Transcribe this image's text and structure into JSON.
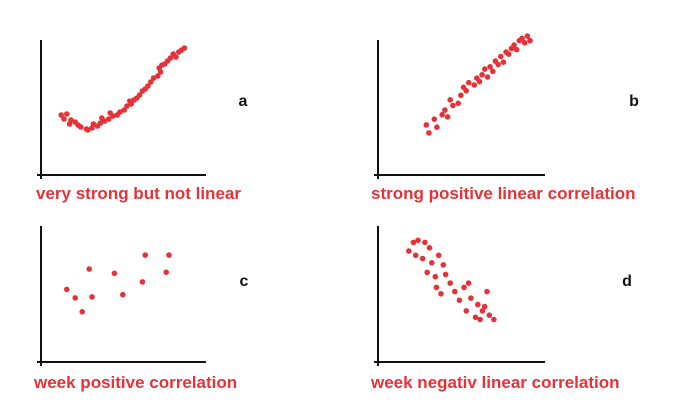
{
  "colors": {
    "point": "#e53238",
    "axis": "#111111",
    "caption": "#e53238"
  },
  "chart_data": [
    {
      "type": "scatter",
      "letter": "a",
      "caption": "very strong but not linear",
      "xlim": [
        0,
        100
      ],
      "ylim": [
        0,
        100
      ],
      "points": [
        [
          8,
          33
        ],
        [
          12,
          34
        ],
        [
          10,
          29
        ],
        [
          15,
          28
        ],
        [
          14,
          24
        ],
        [
          18,
          26
        ],
        [
          22,
          21
        ],
        [
          20,
          23
        ],
        [
          26,
          19
        ],
        [
          30,
          20
        ],
        [
          31,
          24
        ],
        [
          34,
          22
        ],
        [
          36,
          25
        ],
        [
          39,
          27
        ],
        [
          37,
          30
        ],
        [
          42,
          29
        ],
        [
          45,
          32
        ],
        [
          43,
          35
        ],
        [
          48,
          33
        ],
        [
          50,
          36
        ],
        [
          53,
          38
        ],
        [
          55,
          42
        ],
        [
          58,
          44
        ],
        [
          57,
          47
        ],
        [
          62,
          50
        ],
        [
          64,
          53
        ],
        [
          66,
          57
        ],
        [
          70,
          62
        ],
        [
          72,
          66
        ],
        [
          74,
          70
        ],
        [
          77,
          72
        ],
        [
          79,
          76
        ],
        [
          78,
          80
        ],
        [
          82,
          84
        ],
        [
          84,
          87
        ],
        [
          86,
          90
        ],
        [
          88,
          94
        ],
        [
          90,
          91
        ],
        [
          92,
          96
        ],
        [
          94,
          98
        ],
        [
          96,
          100
        ],
        [
          60,
          48
        ],
        [
          68,
          59
        ],
        [
          80,
          83
        ],
        [
          27,
          18
        ]
      ]
    },
    {
      "type": "scatter",
      "letter": "b",
      "caption": "strong positive linear correlation",
      "xlim": [
        0,
        100
      ],
      "ylim": [
        0,
        100
      ],
      "points": [
        [
          16,
          22
        ],
        [
          18,
          15
        ],
        [
          22,
          27
        ],
        [
          24,
          20
        ],
        [
          28,
          31
        ],
        [
          30,
          35
        ],
        [
          32,
          29
        ],
        [
          36,
          39
        ],
        [
          34,
          44
        ],
        [
          40,
          41
        ],
        [
          42,
          48
        ],
        [
          46,
          52
        ],
        [
          44,
          55
        ],
        [
          48,
          59
        ],
        [
          52,
          57
        ],
        [
          54,
          63
        ],
        [
          56,
          60
        ],
        [
          58,
          66
        ],
        [
          62,
          64
        ],
        [
          60,
          71
        ],
        [
          64,
          73
        ],
        [
          66,
          69
        ],
        [
          68,
          78
        ],
        [
          70,
          75
        ],
        [
          72,
          82
        ],
        [
          74,
          77
        ],
        [
          76,
          86
        ],
        [
          78,
          84
        ],
        [
          80,
          89
        ],
        [
          82,
          92
        ],
        [
          84,
          88
        ],
        [
          86,
          96
        ],
        [
          88,
          98
        ],
        [
          90,
          94
        ],
        [
          92,
          100
        ],
        [
          94,
          96
        ]
      ]
    },
    {
      "type": "scatter",
      "letter": "c",
      "caption": "week positive correlation",
      "xlim": [
        0,
        100
      ],
      "ylim": [
        0,
        100
      ],
      "points": [
        [
          12,
          52
        ],
        [
          18,
          44
        ],
        [
          23,
          31
        ],
        [
          28,
          71
        ],
        [
          30,
          45
        ],
        [
          46,
          67
        ],
        [
          52,
          47
        ],
        [
          66,
          59
        ],
        [
          68,
          84
        ],
        [
          83,
          68
        ],
        [
          85,
          84
        ]
      ]
    },
    {
      "type": "scatter",
      "letter": "d",
      "caption": "week negativ linear correlation",
      "xlim": [
        0,
        100
      ],
      "ylim": [
        0,
        100
      ],
      "points": [
        [
          12,
          86
        ],
        [
          16,
          94
        ],
        [
          20,
          96
        ],
        [
          26,
          94
        ],
        [
          18,
          82
        ],
        [
          24,
          79
        ],
        [
          30,
          89
        ],
        [
          32,
          75
        ],
        [
          38,
          82
        ],
        [
          42,
          73
        ],
        [
          28,
          66
        ],
        [
          35,
          62
        ],
        [
          44,
          64
        ],
        [
          36,
          52
        ],
        [
          40,
          46
        ],
        [
          48,
          56
        ],
        [
          52,
          48
        ],
        [
          56,
          40
        ],
        [
          60,
          52
        ],
        [
          62,
          30
        ],
        [
          66,
          42
        ],
        [
          70,
          24
        ],
        [
          72,
          36
        ],
        [
          74,
          22
        ],
        [
          76,
          30
        ],
        [
          80,
          48
        ],
        [
          64,
          56
        ],
        [
          78,
          34
        ],
        [
          82,
          26
        ],
        [
          86,
          22
        ]
      ]
    }
  ]
}
